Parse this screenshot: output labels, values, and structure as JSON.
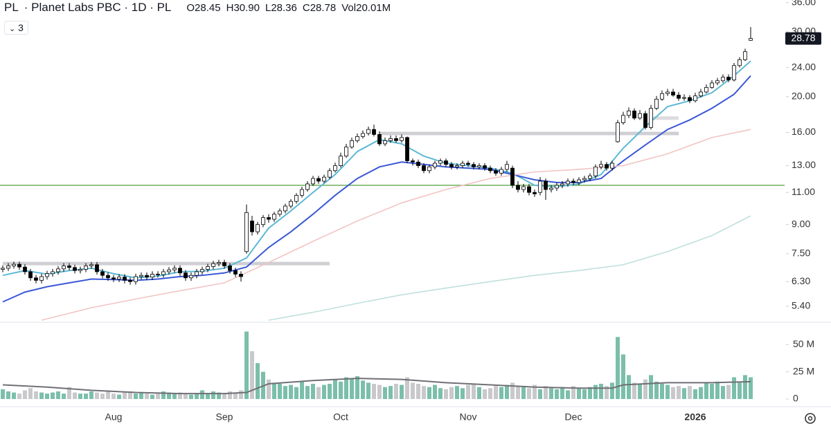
{
  "header": {
    "symbol": "PL",
    "description": "· Planet Labs PBC · 1D · PL",
    "ohlcv": [
      "O28.45",
      "H30.90",
      "L28.36",
      "C28.78",
      "Vol20.01M"
    ],
    "indicators": "3"
  },
  "chart_data": [
    {
      "type": "candlestick",
      "log_scale": true,
      "ylim": [
        4.95,
        36.6
      ],
      "yticks": [
        {
          "value": 5.4,
          "label": "5.40"
        },
        {
          "value": 6.3,
          "label": "6.30"
        },
        {
          "value": 7.5,
          "label": "7.50"
        },
        {
          "value": 9,
          "label": "9.00"
        },
        {
          "value": 11,
          "label": "11.00"
        },
        {
          "value": 13,
          "label": "13.00"
        },
        {
          "value": 16,
          "label": "16.00"
        },
        {
          "value": 20,
          "label": "20.00"
        },
        {
          "value": 24,
          "label": "24.00"
        },
        {
          "value": 30,
          "label": "30.00"
        },
        {
          "value": 36,
          "label": "36.00"
        }
      ],
      "xticks": [
        {
          "value": 20,
          "label": "Aug"
        },
        {
          "value": 40,
          "label": "Sep"
        },
        {
          "value": 61,
          "label": "Oct"
        },
        {
          "value": 84,
          "label": "Nov"
        },
        {
          "value": 103,
          "label": "Dec"
        },
        {
          "value": 125,
          "label": "2026"
        }
      ],
      "up_color": "#ffffff",
      "down_color": "#000000",
      "wick_color": "#000000",
      "open": [
        6.8,
        6.85,
        6.95,
        7.02,
        6.9,
        6.7,
        6.45,
        6.35,
        6.5,
        6.62,
        6.7,
        6.82,
        6.95,
        6.88,
        6.75,
        6.8,
        6.95,
        7.0,
        6.7,
        6.55,
        6.45,
        6.4,
        6.48,
        6.35,
        6.3,
        6.5,
        6.55,
        6.48,
        6.6,
        6.58,
        6.7,
        6.78,
        6.85,
        6.65,
        6.45,
        6.55,
        6.7,
        6.8,
        6.92,
        7.05,
        7.1,
        6.95,
        6.75,
        6.6,
        7.6,
        9.2,
        8.6,
        9.0,
        9.4,
        9.3,
        9.6,
        9.8,
        10.1,
        10.4,
        10.8,
        11.2,
        11.6,
        12.0,
        11.8,
        12.1,
        12.6,
        13.0,
        13.8,
        14.6,
        15.2,
        15.6,
        15.9,
        16.3,
        15.8,
        14.9,
        15.2,
        15.4,
        15.2,
        15.5,
        13.4,
        13.3,
        13.0,
        12.6,
        12.9,
        13.2,
        13.4,
        13.1,
        12.9,
        13.0,
        13.2,
        13.1,
        12.9,
        13.0,
        12.8,
        12.6,
        12.4,
        12.7,
        12.8,
        11.5,
        11.2,
        11.4,
        11.0,
        11.0,
        11.8,
        11.2,
        11.3,
        11.5,
        11.6,
        11.8,
        11.7,
        11.9,
        12.0,
        12.2,
        12.9,
        13.1,
        12.8,
        15.1,
        17.0,
        17.8,
        18.3,
        17.5,
        18.0,
        16.5,
        18.6,
        19.7,
        20.4,
        20.6,
        20.2,
        19.8,
        19.9,
        19.5,
        20.1,
        20.6,
        21.2,
        21.8,
        22.1,
        22.6,
        22.2,
        24.3,
        25.2,
        28.45
      ],
      "high": [
        6.97,
        7.07,
        7.14,
        7.14,
        7.02,
        6.82,
        6.57,
        6.62,
        6.74,
        6.82,
        6.94,
        7.07,
        7.07,
        7.0,
        6.92,
        7.07,
        7.12,
        7.12,
        6.82,
        6.67,
        6.57,
        6.6,
        6.6,
        6.47,
        6.62,
        6.67,
        6.67,
        6.72,
        6.72,
        6.82,
        6.9,
        6.97,
        6.97,
        6.77,
        6.67,
        6.82,
        6.92,
        7.04,
        7.17,
        7.22,
        7.22,
        7.07,
        6.87,
        6.72,
        10.2,
        9.5,
        9.15,
        9.55,
        9.6,
        9.75,
        9.95,
        10.25,
        10.55,
        10.95,
        11.4,
        11.8,
        12.2,
        12.2,
        12.3,
        12.8,
        13.25,
        14.1,
        14.9,
        15.5,
        15.9,
        16.2,
        16.6,
        16.8,
        16.1,
        15.5,
        15.7,
        15.7,
        15.8,
        15.6,
        13.6,
        13.5,
        13.2,
        13.1,
        13.4,
        13.6,
        13.6,
        13.3,
        13.2,
        13.4,
        13.4,
        13.3,
        13.2,
        13.2,
        13.0,
        12.8,
        12.9,
        13.4,
        13.0,
        11.8,
        11.6,
        11.6,
        11.2,
        12.1,
        12.0,
        11.5,
        11.7,
        11.8,
        12.0,
        12.0,
        12.1,
        12.2,
        12.4,
        13.1,
        13.4,
        13.3,
        13.4,
        17.3,
        18.2,
        18.7,
        18.6,
        18.4,
        18.3,
        19.0,
        20.1,
        20.8,
        21.0,
        21.0,
        20.6,
        20.3,
        20.2,
        20.5,
        21.0,
        21.6,
        22.2,
        22.5,
        23.0,
        23.0,
        24.7,
        25.6,
        27.0,
        30.9
      ],
      "low": [
        6.68,
        6.73,
        6.83,
        6.78,
        6.58,
        6.33,
        6.23,
        6.23,
        6.38,
        6.5,
        6.58,
        6.7,
        6.76,
        6.63,
        6.63,
        6.68,
        6.83,
        6.58,
        6.43,
        6.33,
        6.28,
        6.28,
        6.23,
        6.18,
        6.18,
        6.38,
        6.36,
        6.36,
        6.46,
        6.46,
        6.58,
        6.66,
        6.53,
        6.33,
        6.33,
        6.43,
        6.58,
        6.68,
        6.8,
        6.93,
        6.83,
        6.63,
        6.48,
        6.3,
        7.5,
        8.4,
        8.45,
        8.85,
        9.1,
        9.15,
        9.45,
        9.65,
        9.95,
        10.25,
        10.65,
        11.05,
        11.45,
        11.6,
        11.65,
        11.95,
        12.45,
        12.85,
        13.65,
        14.45,
        15.0,
        15.4,
        15.7,
        15.6,
        14.7,
        14.7,
        15.0,
        15.0,
        15.0,
        13.2,
        13.0,
        12.8,
        12.4,
        12.4,
        12.7,
        13.0,
        12.9,
        12.7,
        12.7,
        12.8,
        12.9,
        12.7,
        12.7,
        12.6,
        12.4,
        12.2,
        12.2,
        12.5,
        11.3,
        11.0,
        11.0,
        10.8,
        10.7,
        10.8,
        10.5,
        11.0,
        11.1,
        11.3,
        11.4,
        11.5,
        11.5,
        11.7,
        11.8,
        12.0,
        12.7,
        12.6,
        12.6,
        15.0,
        16.8,
        17.5,
        17.3,
        17.3,
        16.3,
        16.3,
        18.4,
        19.5,
        20.1,
        20.0,
        19.5,
        19.5,
        19.2,
        19.3,
        19.9,
        20.4,
        21.0,
        21.5,
        21.8,
        21.9,
        22.0,
        24.0,
        25.0,
        28.36
      ],
      "close": [
        6.85,
        6.95,
        7.02,
        6.9,
        6.7,
        6.45,
        6.35,
        6.5,
        6.62,
        6.7,
        6.82,
        6.95,
        6.88,
        6.75,
        6.8,
        6.95,
        7.0,
        6.7,
        6.55,
        6.45,
        6.4,
        6.48,
        6.35,
        6.3,
        6.5,
        6.55,
        6.48,
        6.6,
        6.58,
        6.7,
        6.78,
        6.85,
        6.65,
        6.45,
        6.55,
        6.7,
        6.8,
        6.92,
        7.05,
        7.1,
        6.95,
        6.75,
        6.6,
        6.5,
        9.7,
        8.6,
        9.0,
        9.4,
        9.3,
        9.6,
        9.8,
        10.1,
        10.4,
        10.8,
        11.2,
        11.6,
        12.0,
        11.8,
        12.1,
        12.6,
        13.0,
        13.8,
        14.6,
        15.2,
        15.6,
        15.9,
        16.3,
        15.8,
        14.9,
        15.2,
        15.4,
        15.2,
        15.5,
        13.4,
        13.3,
        13.0,
        12.6,
        12.9,
        13.2,
        13.4,
        13.1,
        12.9,
        13.0,
        13.2,
        13.1,
        12.9,
        13.0,
        12.8,
        12.6,
        12.4,
        12.7,
        13.1,
        11.5,
        11.2,
        11.4,
        11.0,
        10.9,
        11.8,
        11.2,
        11.3,
        11.5,
        11.6,
        11.8,
        11.7,
        11.9,
        12.0,
        12.2,
        12.9,
        13.1,
        12.8,
        13.2,
        17.0,
        17.8,
        18.3,
        17.5,
        18.0,
        16.5,
        18.6,
        19.7,
        20.4,
        20.6,
        20.2,
        19.8,
        19.9,
        19.5,
        20.1,
        20.6,
        21.2,
        21.8,
        22.1,
        22.6,
        22.2,
        24.3,
        25.2,
        26.5,
        28.78
      ],
      "series": [
        {
          "color": "#5bb8d4",
          "x": [
            0,
            4,
            8,
            12,
            16,
            20,
            24,
            28,
            32,
            36,
            40,
            44,
            48,
            52,
            56,
            60,
            64,
            68,
            72,
            76,
            80,
            84,
            88,
            92,
            96,
            100,
            104,
            108,
            112,
            116,
            120,
            124,
            128,
            132,
            135
          ],
          "values": [
            6.55,
            6.75,
            6.6,
            6.75,
            6.85,
            6.62,
            6.45,
            6.52,
            6.7,
            6.72,
            6.85,
            7.3,
            8.8,
            9.8,
            11.0,
            12.3,
            14.2,
            15.3,
            14.9,
            13.8,
            13.2,
            13.0,
            12.8,
            12.4,
            11.5,
            11.4,
            11.6,
            12.3,
            14.5,
            16.6,
            18.8,
            19.5,
            20.5,
            22.8,
            25.0
          ]
        },
        {
          "color": "#3a57d6",
          "x": [
            0,
            4,
            8,
            12,
            16,
            20,
            24,
            28,
            32,
            36,
            40,
            44,
            48,
            52,
            56,
            60,
            64,
            68,
            72,
            76,
            80,
            84,
            88,
            92,
            96,
            100,
            104,
            108,
            112,
            116,
            120,
            124,
            128,
            132,
            135
          ],
          "values": [
            5.55,
            5.9,
            6.1,
            6.25,
            6.4,
            6.38,
            6.35,
            6.4,
            6.5,
            6.55,
            6.65,
            6.9,
            7.8,
            8.6,
            9.6,
            10.8,
            12.0,
            12.9,
            13.3,
            13.1,
            12.9,
            12.8,
            12.7,
            12.3,
            11.9,
            11.7,
            11.7,
            12.0,
            13.4,
            14.8,
            16.3,
            17.3,
            18.6,
            20.3,
            22.8
          ]
        },
        {
          "color": "#f2c4c4",
          "x": [
            7,
            16,
            24,
            32,
            40,
            48,
            56,
            64,
            72,
            80,
            88,
            96,
            104,
            112,
            120,
            128,
            135
          ],
          "values": [
            4.95,
            5.35,
            5.65,
            5.95,
            6.25,
            7.1,
            8.1,
            9.2,
            10.3,
            11.2,
            12.0,
            12.5,
            12.7,
            13.0,
            14.0,
            15.5,
            16.3
          ]
        },
        {
          "color": "#bfe0dc",
          "x": [
            48,
            56,
            64,
            72,
            80,
            88,
            96,
            104,
            112,
            120,
            128,
            135
          ],
          "values": [
            4.95,
            5.2,
            5.5,
            5.8,
            6.05,
            6.3,
            6.55,
            6.75,
            7.0,
            7.6,
            8.4,
            9.5
          ]
        }
      ],
      "levels": [
        {
          "value": 7.05,
          "from": 0,
          "to": 59,
          "color": "#cfcfd4"
        },
        {
          "value": 15.9,
          "from": 68,
          "to": 122,
          "color": "#cfcfd4"
        },
        {
          "value": 17.5,
          "from": 117,
          "to": 122,
          "color": "#dcdce0"
        },
        {
          "value": 11.5,
          "color": "#5fa84a"
        }
      ]
    },
    {
      "type": "bar",
      "ylim": [
        0,
        68
      ],
      "yticks": [
        0,
        {
          "value": 25,
          "label": "25 M"
        },
        {
          "value": 50,
          "label": "50 M"
        }
      ],
      "up_color": "#7bbfaa",
      "down_color": "#c9c9cc",
      "values": [
        9,
        7,
        6,
        5,
        8,
        10,
        7,
        6,
        5,
        6,
        7,
        5,
        11,
        6,
        5,
        5,
        7,
        6,
        5,
        8,
        5,
        4,
        6,
        7,
        5,
        6,
        5,
        4,
        5,
        7,
        6,
        5,
        6,
        5,
        4,
        5,
        8,
        5,
        7,
        6,
        5,
        7,
        6,
        8,
        62,
        44,
        33,
        25,
        18,
        15,
        14,
        12,
        13,
        11,
        16,
        12,
        14,
        11,
        13,
        14,
        18,
        16,
        20,
        19,
        21,
        17,
        15,
        14,
        13,
        11,
        12,
        14,
        13,
        20,
        15,
        14,
        12,
        11,
        13,
        10,
        9,
        11,
        12,
        10,
        13,
        14,
        11,
        9,
        10,
        12,
        11,
        13,
        15,
        12,
        11,
        10,
        13,
        9,
        12,
        10,
        9,
        11,
        8,
        12,
        10,
        9,
        11,
        13,
        14,
        12,
        15,
        57,
        41,
        22,
        15,
        14,
        18,
        22,
        16,
        14,
        13,
        11,
        12,
        10,
        12,
        9,
        11,
        15,
        14,
        16,
        12,
        13,
        20,
        15,
        22,
        20.01
      ],
      "series": [
        {
          "color": "#6f6f75",
          "x": [
            0,
            8,
            16,
            24,
            32,
            40,
            44,
            48,
            56,
            64,
            72,
            80,
            88,
            96,
            104,
            110,
            112,
            120,
            128,
            135
          ],
          "values": [
            13,
            11,
            8,
            6,
            5,
            5,
            6,
            14,
            17,
            19,
            18,
            15,
            13,
            11,
            10,
            10,
            13,
            15,
            15,
            16
          ]
        }
      ]
    }
  ]
}
